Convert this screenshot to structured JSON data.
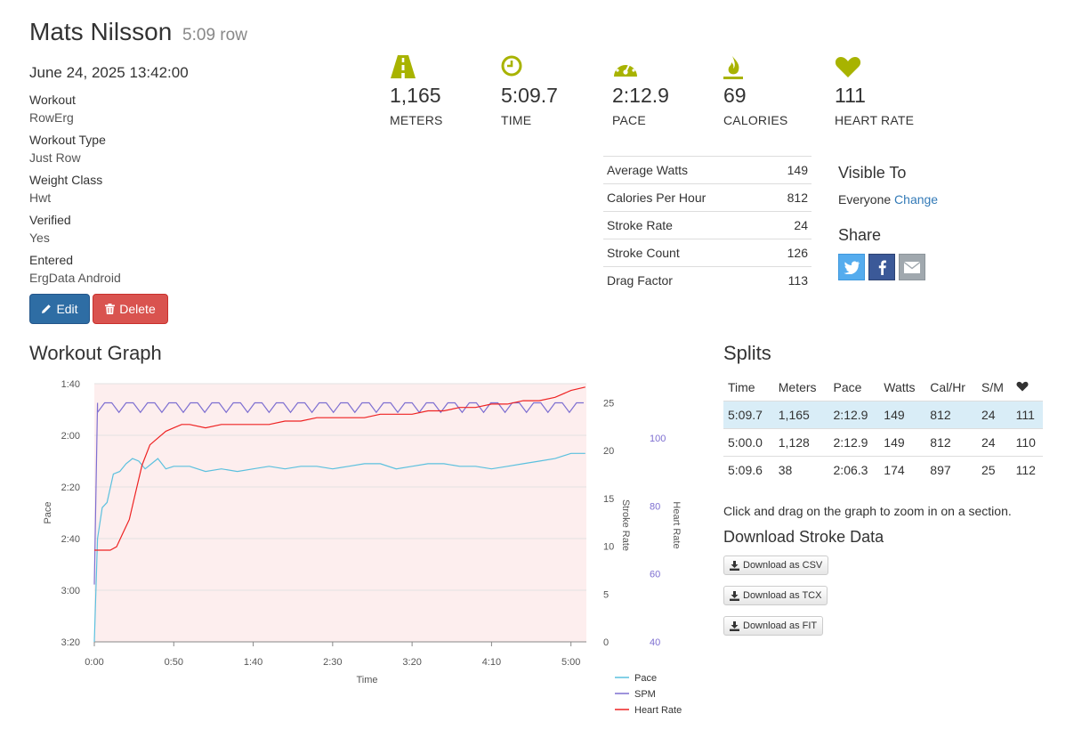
{
  "header": {
    "name": "Mats Nilsson",
    "subtitle": "5:09 row",
    "date": "June 24, 2025 13:42:00"
  },
  "details": [
    {
      "label": "Workout",
      "value": "RowErg"
    },
    {
      "label": "Workout Type",
      "value": "Just Row"
    },
    {
      "label": "Weight Class",
      "value": "Hwt"
    },
    {
      "label": "Verified",
      "value": "Yes"
    },
    {
      "label": "Entered",
      "value": "ErgData Android"
    }
  ],
  "buttons": {
    "edit": "Edit",
    "delete": "Delete"
  },
  "stats": [
    {
      "value": "1,165",
      "label": "METERS",
      "icon": "road-icon"
    },
    {
      "value": "5:09.7",
      "label": "TIME",
      "icon": "clock-icon"
    },
    {
      "value": "2:12.9",
      "label": "PACE",
      "icon": "dashboard-icon"
    },
    {
      "value": "69",
      "label": "CALORIES",
      "icon": "fire-icon"
    },
    {
      "value": "111",
      "label": "HEART RATE",
      "icon": "heart-icon"
    }
  ],
  "metrics": [
    {
      "label": "Average Watts",
      "value": "149"
    },
    {
      "label": "Calories Per Hour",
      "value": "812"
    },
    {
      "label": "Stroke Rate",
      "value": "24"
    },
    {
      "label": "Stroke Count",
      "value": "126"
    },
    {
      "label": "Drag Factor",
      "value": "113"
    }
  ],
  "visibility": {
    "heading": "Visible To",
    "value": "Everyone",
    "link": "Change"
  },
  "share": {
    "heading": "Share",
    "buttons": [
      "twitter-icon",
      "facebook-icon",
      "envelope-icon"
    ]
  },
  "graph_heading": "Workout Graph",
  "splits": {
    "heading": "Splits",
    "columns": [
      "Time",
      "Meters",
      "Pace",
      "Watts",
      "Cal/Hr",
      "S/M",
      "heart-icon"
    ],
    "rows": [
      [
        "5:09.7",
        "1,165",
        "2:12.9",
        "149",
        "812",
        "24",
        "111"
      ],
      [
        "5:00.0",
        "1,128",
        "2:12.9",
        "149",
        "812",
        "24",
        "110"
      ],
      [
        "5:09.6",
        "38",
        "2:06.3",
        "174",
        "897",
        "25",
        "112"
      ]
    ]
  },
  "help_text": "Click and drag on the graph to zoom in on a section.",
  "download": {
    "heading": "Download Stroke Data",
    "buttons": [
      "Download as CSV",
      "Download as TCX",
      "Download as FIT"
    ]
  },
  "colors": {
    "accent": "#a8b300",
    "pace": "#5bc0de",
    "spm": "#7e6fd1",
    "hr": "#ee2222",
    "edit": "#337ab7",
    "delete": "#d9534f",
    "link": "#337ab7",
    "twitter": "#55acee",
    "facebook": "#3b5998",
    "email": "#a0a8ae"
  },
  "chart_data": {
    "type": "line",
    "xlabel": "Time",
    "x_ticks": [
      "0:00",
      "0:50",
      "1:40",
      "2:30",
      "3:20",
      "4:10",
      "5:00"
    ],
    "x_range_seconds": [
      0,
      309.7
    ],
    "axes": {
      "pace": {
        "label": "Pace",
        "ticks": [
          "1:40",
          "2:00",
          "2:20",
          "2:40",
          "3:00",
          "3:20"
        ],
        "range_seconds": [
          200,
          100
        ],
        "inverted": true
      },
      "stroke_rate": {
        "label": "Stroke Rate",
        "ticks": [
          0,
          5,
          10,
          15,
          20,
          25
        ],
        "range": [
          0,
          27
        ]
      },
      "heart_rate": {
        "label": "Heart Rate",
        "ticks": [
          40,
          60,
          80,
          100
        ],
        "range": [
          40,
          116
        ]
      }
    },
    "legend": [
      "Pace",
      "SPM",
      "Heart Rate"
    ],
    "legend_position": "bottom-right",
    "series": [
      {
        "name": "Pace",
        "axis": "pace",
        "x": [
          0,
          2,
          5,
          8,
          12,
          16,
          20,
          24,
          28,
          32,
          36,
          40,
          45,
          50,
          60,
          70,
          80,
          90,
          100,
          110,
          120,
          130,
          140,
          150,
          160,
          170,
          180,
          190,
          200,
          210,
          220,
          230,
          240,
          250,
          260,
          270,
          280,
          290,
          300,
          309
        ],
        "y": [
          200,
          160,
          148,
          146,
          135,
          134,
          131,
          129,
          130,
          133,
          131,
          129,
          133,
          132,
          132,
          134,
          133,
          134,
          133,
          132,
          133,
          132,
          132,
          133,
          132,
          131,
          131,
          133,
          132,
          131,
          131,
          132,
          132,
          133,
          132,
          131,
          130,
          129,
          127,
          127
        ]
      },
      {
        "name": "SPM",
        "axis": "stroke_rate",
        "x": [
          0,
          2,
          60,
          80,
          120,
          160,
          200,
          240,
          280,
          300,
          309
        ],
        "y": [
          6,
          25,
          25,
          25,
          25,
          24,
          25,
          25,
          25,
          24,
          25
        ]
      },
      {
        "name": "Heart Rate",
        "axis": "heart_rate",
        "x": [
          0,
          2,
          10,
          14,
          18,
          22,
          26,
          30,
          35,
          40,
          45,
          50,
          55,
          60,
          70,
          80,
          90,
          100,
          110,
          120,
          130,
          140,
          150,
          160,
          170,
          180,
          190,
          200,
          210,
          220,
          230,
          240,
          250,
          260,
          270,
          280,
          290,
          300,
          309
        ],
        "y": [
          67,
          67,
          67,
          68,
          72,
          76,
          84,
          92,
          98,
          100,
          102,
          103,
          104,
          104,
          103,
          104,
          104,
          104,
          104,
          105,
          105,
          106,
          106,
          106,
          106,
          107,
          107,
          107,
          108,
          108,
          109,
          109,
          110,
          110,
          111,
          111,
          112,
          114,
          115
        ]
      }
    ]
  }
}
